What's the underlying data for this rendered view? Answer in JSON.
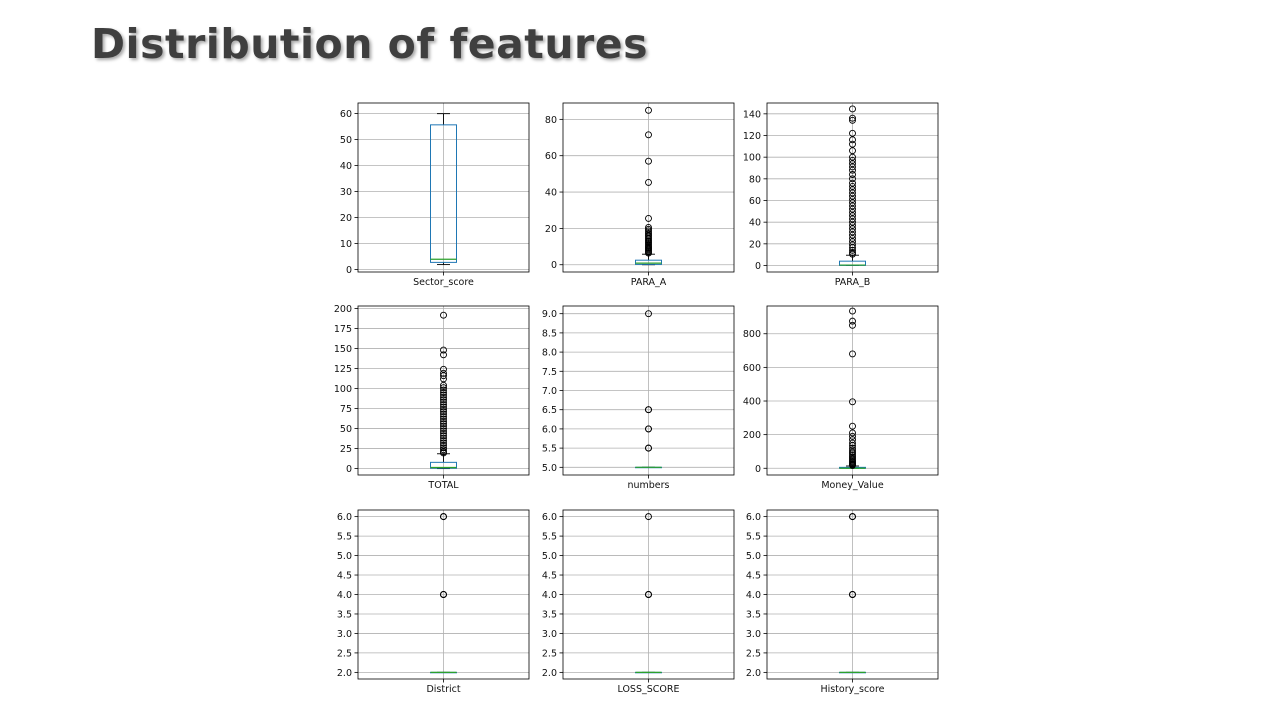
{
  "slide": {
    "title": "Distribution of features"
  },
  "colors": {
    "box": "#1f77b4",
    "median": "#2ca02c",
    "whisker": "#000000",
    "grid": "#b0b0b0",
    "frame": "#000000",
    "flier": "#000000"
  },
  "chart_data": [
    {
      "type": "boxplot",
      "xlabel": "Sector_score",
      "ylim": [
        -1,
        64
      ],
      "yticks": [
        0,
        10,
        20,
        30,
        40,
        50,
        60
      ],
      "ytick_labels": [
        "0",
        "10",
        "20",
        "30",
        "40",
        "50",
        "60"
      ],
      "grid": true,
      "box": {
        "q1": 2.7,
        "median": 3.9,
        "q3": 55.6,
        "whisker_low": 1.85,
        "whisker_high": 59.9
      },
      "outliers": []
    },
    {
      "type": "boxplot",
      "xlabel": "PARA_A",
      "ylim": [
        -4,
        89
      ],
      "yticks": [
        0,
        20,
        40,
        60,
        80
      ],
      "ytick_labels": [
        "0",
        "20",
        "40",
        "60",
        "80"
      ],
      "grid": true,
      "box": {
        "q1": 0.2,
        "median": 0.9,
        "q3": 2.5,
        "whisker_low": 0,
        "whisker_high": 5.8
      },
      "outliers": [
        85.0,
        71.5,
        57.0,
        45.3,
        25.5,
        20.5,
        19.5,
        18.6,
        17.7,
        16.9,
        16.0,
        15.2,
        14.4,
        13.6,
        12.9,
        12.2,
        11.5,
        10.8,
        10.1,
        9.4,
        8.8,
        8.2,
        7.6,
        7.0,
        6.4
      ]
    },
    {
      "type": "boxplot",
      "xlabel": "PARA_B",
      "ylim": [
        -6,
        150
      ],
      "yticks": [
        0,
        20,
        40,
        60,
        80,
        100,
        120,
        140
      ],
      "ytick_labels": [
        "0",
        "20",
        "40",
        "60",
        "80",
        "100",
        "120",
        "140"
      ],
      "grid": true,
      "box": {
        "q1": 0.1,
        "median": 0.4,
        "q3": 4.0,
        "whisker_low": 0,
        "whisker_high": 9.5
      },
      "outliers": [
        144.5,
        136.0,
        134.0,
        122.0,
        116.0,
        112.0,
        106.0,
        100.0,
        97.0,
        94.0,
        91.0,
        88.0,
        84.0,
        80.0,
        76.0,
        73.0,
        70.0,
        67.0,
        64.0,
        61.0,
        58.0,
        55.0,
        52.0,
        49.0,
        46.0,
        43.0,
        40.0,
        37.0,
        34.0,
        31.0,
        28.0,
        25.0,
        22.0,
        19.0,
        16.5,
        14.0,
        12.0,
        10.5
      ]
    },
    {
      "type": "boxplot",
      "xlabel": "TOTAL",
      "ylim": [
        -8,
        203
      ],
      "yticks": [
        0,
        25,
        50,
        75,
        100,
        125,
        150,
        175,
        200
      ],
      "ytick_labels": [
        "0",
        "25",
        "50",
        "75",
        "100",
        "125",
        "150",
        "175",
        "200"
      ],
      "grid": true,
      "box": {
        "q1": 0.5,
        "median": 1.4,
        "q3": 7.8,
        "whisker_low": 0,
        "whisker_high": 18.5
      },
      "outliers": [
        191.5,
        148.0,
        142.0,
        124.0,
        119.0,
        116.0,
        112.0,
        104.0,
        101.0,
        98.0,
        95.0,
        92.0,
        89.0,
        86.0,
        83.0,
        80.0,
        77.0,
        74.0,
        71.0,
        68.0,
        65.0,
        62.0,
        59.0,
        56.0,
        53.0,
        50.0,
        47.0,
        44.0,
        41.0,
        38.0,
        35.0,
        32.0,
        29.0,
        26.0,
        23.5,
        21.0,
        19.5
      ]
    },
    {
      "type": "boxplot",
      "xlabel": "numbers",
      "ylim": [
        4.8,
        9.2
      ],
      "yticks": [
        5.0,
        5.5,
        6.0,
        6.5,
        7.0,
        7.5,
        8.0,
        8.5,
        9.0
      ],
      "ytick_labels": [
        "5.0",
        "5.5",
        "6.0",
        "6.5",
        "7.0",
        "7.5",
        "8.0",
        "8.5",
        "9.0"
      ],
      "grid": true,
      "box": {
        "q1": 5.0,
        "median": 5.0,
        "q3": 5.0,
        "whisker_low": 5.0,
        "whisker_high": 5.0
      },
      "outliers": [
        9.0,
        6.5,
        6.5,
        6.0,
        6.0,
        5.5,
        5.5
      ]
    },
    {
      "type": "boxplot",
      "xlabel": "Money_Value",
      "ylim": [
        -40,
        965
      ],
      "yticks": [
        0,
        200,
        400,
        600,
        800
      ],
      "ytick_labels": [
        "0",
        "200",
        "400",
        "600",
        "800"
      ],
      "grid": true,
      "box": {
        "q1": 0.0,
        "median": 0.1,
        "q3": 5.5,
        "whisker_low": 0,
        "whisker_high": 13.5
      },
      "outliers": [
        935,
        875,
        850,
        680,
        395,
        250,
        210,
        190,
        170,
        150,
        135,
        120,
        108,
        96,
        86,
        76,
        66,
        57,
        49,
        42,
        36,
        30,
        25,
        21,
        17
      ]
    },
    {
      "type": "boxplot",
      "xlabel": "District",
      "ylim": [
        1.83,
        6.17
      ],
      "yticks": [
        2.0,
        2.5,
        3.0,
        3.5,
        4.0,
        4.5,
        5.0,
        5.5,
        6.0
      ],
      "ytick_labels": [
        "2.0",
        "2.5",
        "3.0",
        "3.5",
        "4.0",
        "4.5",
        "5.0",
        "5.5",
        "6.0"
      ],
      "grid": true,
      "box": {
        "q1": 2.0,
        "median": 2.0,
        "q3": 2.0,
        "whisker_low": 2.0,
        "whisker_high": 2.0
      },
      "outliers": [
        6.0,
        6.0,
        4.0,
        4.0
      ]
    },
    {
      "type": "boxplot",
      "xlabel": "LOSS_SCORE",
      "ylim": [
        1.83,
        6.17
      ],
      "yticks": [
        2.0,
        2.5,
        3.0,
        3.5,
        4.0,
        4.5,
        5.0,
        5.5,
        6.0
      ],
      "ytick_labels": [
        "2.0",
        "2.5",
        "3.0",
        "3.5",
        "4.0",
        "4.5",
        "5.0",
        "5.5",
        "6.0"
      ],
      "grid": true,
      "box": {
        "q1": 2.0,
        "median": 2.0,
        "q3": 2.0,
        "whisker_low": 2.0,
        "whisker_high": 2.0
      },
      "outliers": [
        6.0,
        4.0,
        4.0
      ]
    },
    {
      "type": "boxplot",
      "xlabel": "History_score",
      "ylim": [
        1.83,
        6.17
      ],
      "yticks": [
        2.0,
        2.5,
        3.0,
        3.5,
        4.0,
        4.5,
        5.0,
        5.5,
        6.0
      ],
      "ytick_labels": [
        "2.0",
        "2.5",
        "3.0",
        "3.5",
        "4.0",
        "4.5",
        "5.0",
        "5.5",
        "6.0"
      ],
      "grid": true,
      "box": {
        "q1": 2.0,
        "median": 2.0,
        "q3": 2.0,
        "whisker_low": 2.0,
        "whisker_high": 2.0
      },
      "outliers": [
        6.0,
        6.0,
        4.0,
        4.0
      ]
    }
  ]
}
